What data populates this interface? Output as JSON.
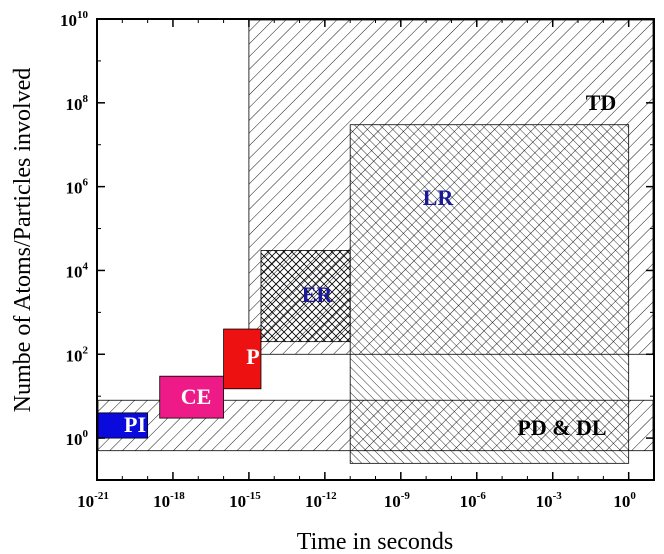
{
  "chart_data": {
    "type": "range-regions",
    "xlabel": "Time in seconds",
    "ylabel": "Numbe of Atoms/Particles involved",
    "x_scale": "log",
    "y_scale": "log",
    "xlim": [
      "1e-21",
      "1e1"
    ],
    "ylim": [
      "1e-1",
      "1e10"
    ],
    "x_ticks": [
      {
        "base": "10",
        "exp": "-21"
      },
      {
        "base": "10",
        "exp": "-18"
      },
      {
        "base": "10",
        "exp": "-15"
      },
      {
        "base": "10",
        "exp": "-12"
      },
      {
        "base": "10",
        "exp": "-9"
      },
      {
        "base": "10",
        "exp": "-6"
      },
      {
        "base": "10",
        "exp": "-3"
      },
      {
        "base": "10",
        "exp": "0"
      }
    ],
    "y_ticks": [
      {
        "base": "10",
        "exp": "0"
      },
      {
        "base": "10",
        "exp": "2"
      },
      {
        "base": "10",
        "exp": "4"
      },
      {
        "base": "10",
        "exp": "6"
      },
      {
        "base": "10",
        "exp": "8"
      },
      {
        "base": "10",
        "exp": "10"
      }
    ],
    "grid": false,
    "regions": [
      {
        "label": "TD",
        "x_range": [
          "1e-15",
          "1e1"
        ],
        "y_range": [
          "1e2",
          "1e10"
        ],
        "fill": "hatch-back",
        "label_color": "#000000"
      },
      {
        "label": "PD & DL",
        "x_range": [
          "1e-21",
          "1e1"
        ],
        "y_range": [
          "0.5",
          "8"
        ],
        "fill": "hatch-back",
        "label_color": "#000000"
      },
      {
        "label": "LR",
        "x_range": [
          "1e-11",
          "1e0"
        ],
        "y_range": [
          "0.25",
          "3e7"
        ],
        "fill": "hatch-forward-dense",
        "label_color": "#1a1a99"
      },
      {
        "label": "ER",
        "x_range": [
          "3e-15",
          "1e-11"
        ],
        "y_range": [
          "2e2",
          "3e4"
        ],
        "fill": "crosshatch",
        "label_color": "#1a1a99"
      },
      {
        "label": "PI",
        "x_range": [
          "1e-21",
          "1e-19"
        ],
        "y_range": [
          "1",
          "4"
        ],
        "fill": "#0a0adc",
        "label_color": "#ffffff"
      },
      {
        "label": "CE",
        "x_range": [
          "3e-19",
          "1e-16"
        ],
        "y_range": [
          "3",
          "30"
        ],
        "fill": "#ee1a88",
        "label_color": "#ffffff"
      },
      {
        "label": "P",
        "x_range": [
          "1e-16",
          "3e-15"
        ],
        "y_range": [
          "15",
          "400"
        ],
        "fill": "#ee1111",
        "label_color": "#ffffff"
      }
    ]
  }
}
